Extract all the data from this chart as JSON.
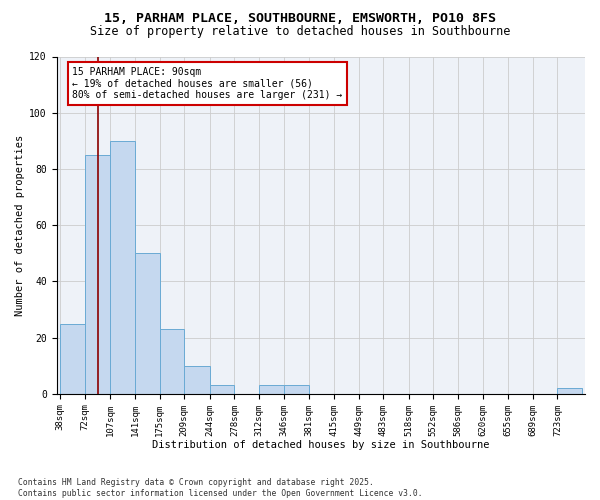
{
  "title_line1": "15, PARHAM PLACE, SOUTHBOURNE, EMSWORTH, PO10 8FS",
  "title_line2": "Size of property relative to detached houses in Southbourne",
  "xlabel": "Distribution of detached houses by size in Southbourne",
  "ylabel": "Number of detached properties",
  "bar_edges": [
    38,
    72,
    107,
    141,
    175,
    209,
    244,
    278,
    312,
    346,
    381,
    415,
    449,
    483,
    518,
    552,
    586,
    620,
    655,
    689,
    723
  ],
  "bar_heights": [
    25,
    85,
    90,
    50,
    23,
    10,
    3,
    0,
    3,
    3,
    0,
    0,
    0,
    0,
    0,
    0,
    0,
    0,
    0,
    0,
    2
  ],
  "bar_color": "#c5d8ef",
  "bar_edgecolor": "#6aaad4",
  "property_size": 90,
  "vline_color": "#8b0000",
  "annotation_text": "15 PARHAM PLACE: 90sqm\n← 19% of detached houses are smaller (56)\n80% of semi-detached houses are larger (231) →",
  "annotation_box_color": "#ffffff",
  "annotation_box_edgecolor": "#cc0000",
  "ylim": [
    0,
    120
  ],
  "yticks": [
    0,
    20,
    40,
    60,
    80,
    100,
    120
  ],
  "grid_color": "#cccccc",
  "bg_color": "#eef2f8",
  "footnote": "Contains HM Land Registry data © Crown copyright and database right 2025.\nContains public sector information licensed under the Open Government Licence v3.0.",
  "title_fontsize": 9.5,
  "subtitle_fontsize": 8.5,
  "axis_fontsize": 7.5,
  "tick_fontsize": 6.5,
  "annot_fontsize": 7.0
}
